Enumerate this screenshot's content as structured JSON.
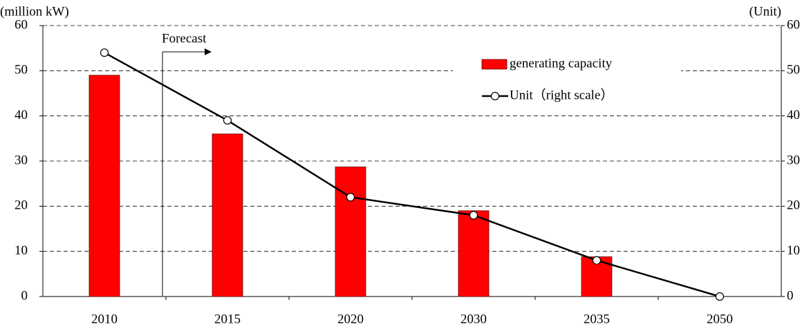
{
  "chart_data": {
    "type": "bar",
    "y_label": "(million kW)",
    "y2_label": "(Unit)",
    "annotation": "Forecast",
    "categories": [
      "2010",
      "2015",
      "2020",
      "2030",
      "2035",
      "2050"
    ],
    "series": [
      {
        "name": "generating capacity",
        "type": "bar",
        "color": "#ff0000",
        "values": [
          49,
          36,
          28.7,
          19,
          8.8,
          null
        ]
      },
      {
        "name": "Unit（right scale）",
        "type": "line",
        "axis": "y2",
        "color": "#000000",
        "values": [
          54,
          39,
          22,
          18,
          8,
          0
        ]
      }
    ],
    "ylim": [
      0,
      60
    ],
    "yticks": [
      0,
      10,
      20,
      30,
      40,
      50,
      60
    ],
    "y2lim": [
      0,
      60
    ],
    "y2ticks": [
      0,
      10,
      20,
      30,
      40,
      50,
      60
    ],
    "grid": true,
    "legend": "top-right"
  }
}
